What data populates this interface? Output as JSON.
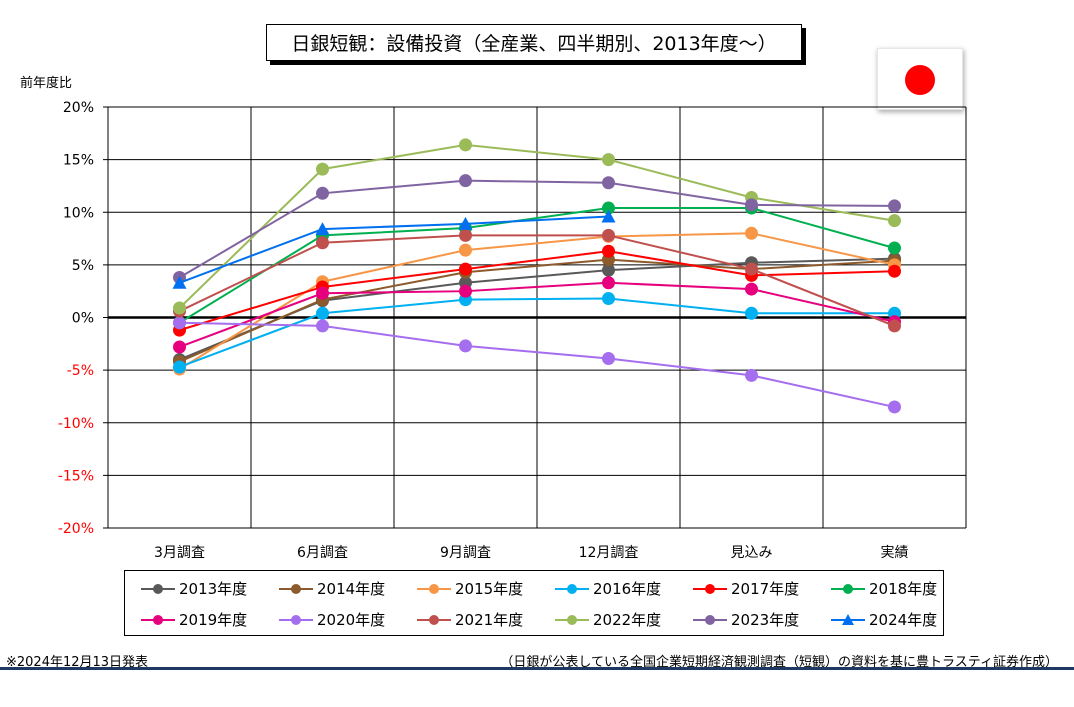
{
  "header": {
    "title": "日銀短観：設備投資（全産業、四半期別、2013年度～）"
  },
  "flag": {
    "icon": "japan-flag-icon",
    "color": "#ff0000"
  },
  "footer": {
    "date_note": "※2024年12月13日発表",
    "source_note": "（日銀が公表している全国企業短期経済観測調査（短観）の資料を基に豊トラスティ証券作成）"
  },
  "chart_data": {
    "type": "line",
    "title": "日銀短観：設備投資（全産業、四半期別、2013年度～）",
    "xlabel": "",
    "ylabel": "前年度比",
    "categories": [
      "3月調査",
      "6月調査",
      "9月調査",
      "12月調査",
      "見込み",
      "実績"
    ],
    "ylim": [
      -20,
      20
    ],
    "yticks": [
      "20%",
      "15%",
      "10%",
      "5%",
      "0%",
      "-5%",
      "-10%",
      "-15%",
      "-20%"
    ],
    "ytick_values": [
      20,
      15,
      10,
      5,
      0,
      -5,
      -10,
      -15,
      -20
    ],
    "grid": true,
    "legend_position": "bottom",
    "series": [
      {
        "name": "2013年度",
        "color": "#595959",
        "marker": "circle",
        "values": [
          -4.0,
          1.6,
          3.3,
          4.5,
          5.2,
          5.6
        ]
      },
      {
        "name": "2014年度",
        "color": "#8c5a2b",
        "marker": "circle",
        "values": [
          -4.2,
          1.7,
          4.3,
          5.5,
          4.6,
          5.4
        ]
      },
      {
        "name": "2015年度",
        "color": "#f79646",
        "marker": "circle",
        "values": [
          -4.9,
          3.4,
          6.4,
          7.7,
          8.0,
          5.0
        ]
      },
      {
        "name": "2016年度",
        "color": "#00b0f0",
        "marker": "circle",
        "values": [
          -4.7,
          0.4,
          1.7,
          1.8,
          0.4,
          0.4
        ]
      },
      {
        "name": "2017年度",
        "color": "#ff0000",
        "marker": "circle",
        "values": [
          -1.2,
          2.9,
          4.6,
          6.3,
          4.0,
          4.4
        ]
      },
      {
        "name": "2018年度",
        "color": "#00b050",
        "marker": "circle",
        "values": [
          -0.5,
          7.8,
          8.5,
          10.4,
          10.4,
          6.6
        ]
      },
      {
        "name": "2019年度",
        "color": "#e6007e",
        "marker": "circle",
        "values": [
          -2.8,
          2.3,
          2.5,
          3.3,
          2.7,
          -0.4
        ]
      },
      {
        "name": "2020年度",
        "color": "#a56eee",
        "marker": "circle",
        "values": [
          -0.5,
          -0.8,
          -2.7,
          -3.9,
          -5.5,
          -8.5
        ]
      },
      {
        "name": "2021年度",
        "color": "#c0504d",
        "marker": "circle",
        "values": [
          0.6,
          7.1,
          7.8,
          7.8,
          4.6,
          -0.8
        ]
      },
      {
        "name": "2022年度",
        "color": "#9bbb59",
        "marker": "circle",
        "values": [
          0.9,
          14.1,
          16.4,
          15.0,
          11.4,
          9.2
        ]
      },
      {
        "name": "2023年度",
        "color": "#8064a2",
        "marker": "circle",
        "values": [
          3.8,
          11.8,
          13.0,
          12.8,
          10.7,
          10.6
        ]
      },
      {
        "name": "2024年度",
        "color": "#0070f0",
        "marker": "triangle",
        "values": [
          3.3,
          8.4,
          8.9,
          9.6,
          null,
          null
        ]
      }
    ]
  }
}
